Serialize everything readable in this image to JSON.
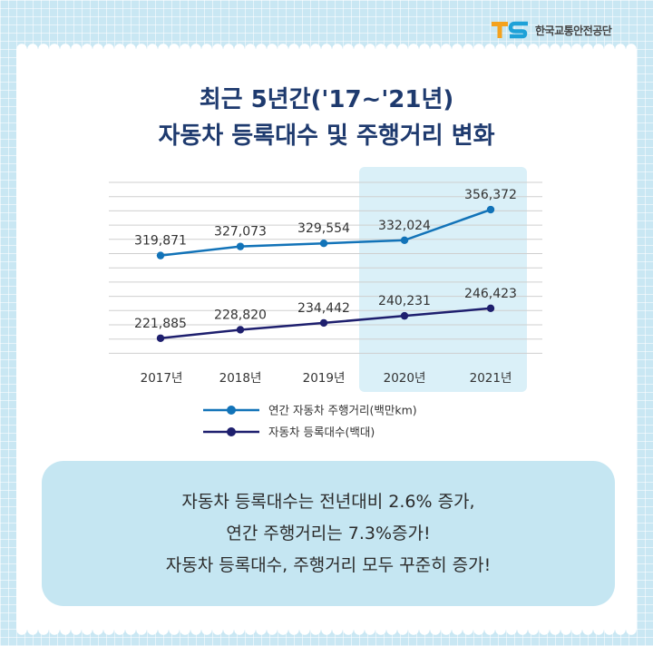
{
  "logo": {
    "mark": "TS",
    "name": "한국교통안전공단"
  },
  "header": {
    "title_line1": "최근 5년간('17~'21년)",
    "title_line2": "자동차 등록대수 및 주행거리 변화"
  },
  "colors": {
    "series_distance": "#1273b8",
    "series_registrations": "#1e1f6e",
    "highlight": "#daf0f8",
    "title": "#1e3a6e"
  },
  "chart_data": {
    "type": "line",
    "categories": [
      "2017년",
      "2018년",
      "2019년",
      "2020년",
      "2021년"
    ],
    "highlighted_categories": [
      "2020년",
      "2021년"
    ],
    "series": [
      {
        "name": "연간 자동차 주행거리(백만km)",
        "values": [
          319871,
          327073,
          329554,
          332024,
          356372
        ],
        "labels": [
          "319,871",
          "327,073",
          "329,554",
          "332,024",
          "356,372"
        ]
      },
      {
        "name": "자동차 등록대수(백대)",
        "values": [
          221885,
          228820,
          234442,
          240231,
          246423
        ],
        "labels": [
          "221,885",
          "228,820",
          "234,442",
          "240,231",
          "246,423"
        ]
      }
    ],
    "grid": true,
    "legend_position": "bottom-center"
  },
  "summary": {
    "lines": [
      "자동차 등록대수는 전년대비 2.6% 증가,",
      "연간 주행거리는 7.3%증가!",
      "자동차 등록대수, 주행거리 모두 꾸준히 증가!"
    ]
  }
}
